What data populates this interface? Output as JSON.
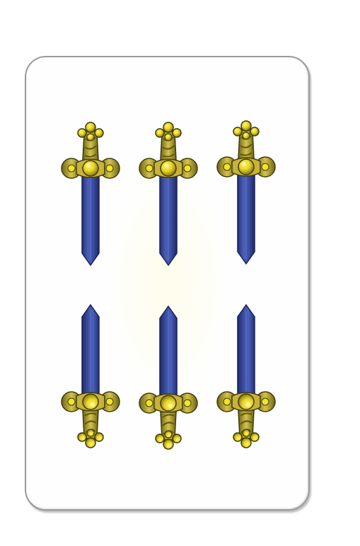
{
  "card": {
    "suit": "swords",
    "rank": 6,
    "sword_count": 6,
    "rows": [
      {
        "orientation": "point-down",
        "count": 3
      },
      {
        "orientation": "point-up",
        "count": 3
      }
    ]
  },
  "colors": {
    "card_face": "#fefefe",
    "card_border": "#9a9a9a",
    "blade": "#3f53a8",
    "blade_dark": "#25307a",
    "hilt_gold": "#c9b23a",
    "hilt_dark": "#5f5a12",
    "pommel_yellow": "#f1e32c"
  }
}
